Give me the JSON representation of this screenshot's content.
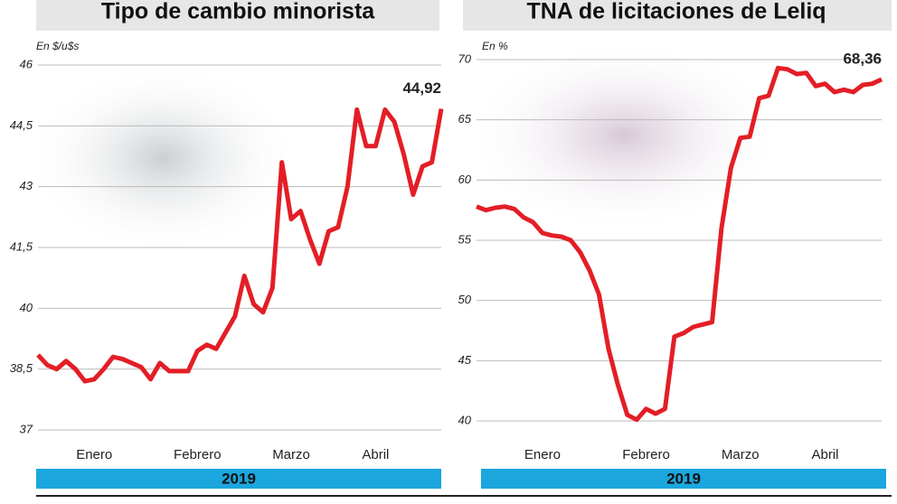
{
  "chart_data": [
    {
      "type": "line",
      "title": "Tipo de cambio minorista",
      "ylabel": "En $/u$s",
      "xlabel": "2019",
      "categories": [
        null,
        null,
        null,
        null,
        null,
        null,
        "Enero",
        null,
        null,
        null,
        null,
        null,
        null,
        null,
        null,
        null,
        null,
        "Febrero",
        null,
        null,
        null,
        null,
        null,
        null,
        null,
        null,
        null,
        "Marzo",
        null,
        null,
        null,
        null,
        null,
        null,
        null,
        null,
        "Abril",
        null,
        null,
        null,
        null,
        null,
        null,
        null
      ],
      "series": [
        {
          "name": null,
          "color": "#e31e26",
          "values": [
            38.85,
            38.6,
            38.5,
            38.7,
            38.5,
            38.2,
            38.25,
            38.5,
            38.8,
            38.75,
            38.65,
            38.55,
            38.25,
            38.65,
            38.45,
            38.45,
            38.45,
            38.95,
            39.1,
            39.0,
            39.4,
            39.8,
            40.8,
            40.1,
            39.9,
            40.5,
            43.6,
            42.2,
            42.4,
            41.7,
            41.1,
            41.9,
            42.0,
            43.0,
            44.9,
            44.0,
            44.0,
            44.9,
            44.6,
            43.8,
            42.8,
            43.5,
            43.6,
            44.92
          ],
          "value_labels": [
            null,
            null,
            null,
            null,
            null,
            null,
            null,
            null,
            null,
            null,
            null,
            null,
            null,
            null,
            null,
            null,
            null,
            null,
            null,
            null,
            null,
            null,
            null,
            null,
            null,
            null,
            null,
            null,
            null,
            null,
            null,
            null,
            null,
            null,
            null,
            null,
            null,
            null,
            null,
            null,
            null,
            null,
            null,
            "44,92"
          ]
        }
      ],
      "ylim": [
        37,
        46
      ],
      "yticks": [
        37,
        {
          "value": 38.5,
          "label": "38,5"
        },
        40,
        {
          "value": 41.5,
          "label": "41,5"
        },
        43,
        {
          "value": 44.5,
          "label": "44,5"
        },
        46
      ],
      "grid": true,
      "band_color": "#1ba7de"
    },
    {
      "type": "line",
      "title": "TNA de licitaciones de Leliq",
      "ylabel": "En %",
      "xlabel": "2019",
      "categories": [
        null,
        null,
        null,
        null,
        null,
        null,
        null,
        "Enero",
        null,
        null,
        null,
        null,
        null,
        null,
        null,
        null,
        null,
        null,
        "Febrero",
        null,
        null,
        null,
        null,
        null,
        null,
        null,
        null,
        null,
        "Marzo",
        null,
        null,
        null,
        null,
        null,
        null,
        null,
        null,
        "Abril",
        null,
        null,
        null,
        null,
        null,
        null
      ],
      "series": [
        {
          "name": null,
          "color": "#e31e26",
          "values": [
            57.8,
            57.5,
            57.7,
            57.8,
            57.6,
            56.9,
            56.5,
            55.6,
            55.4,
            55.3,
            55.0,
            54.0,
            52.5,
            50.5,
            46.0,
            43.0,
            40.5,
            40.1,
            41.0,
            40.6,
            41.0,
            47.0,
            47.3,
            47.8,
            48.0,
            48.2,
            56.0,
            61.0,
            63.5,
            63.6,
            66.8,
            67.0,
            69.3,
            69.2,
            68.8,
            68.9,
            67.8,
            68.0,
            67.3,
            67.5,
            67.3,
            67.9,
            68.0,
            68.36
          ],
          "value_labels": [
            null,
            null,
            null,
            null,
            null,
            null,
            null,
            null,
            null,
            null,
            null,
            null,
            null,
            null,
            null,
            null,
            null,
            null,
            null,
            null,
            null,
            null,
            null,
            null,
            null,
            null,
            null,
            null,
            null,
            null,
            null,
            null,
            null,
            null,
            null,
            null,
            null,
            null,
            null,
            null,
            null,
            null,
            null,
            "68,36"
          ]
        }
      ],
      "ylim": [
        40,
        70
      ],
      "yticks": [
        40,
        45,
        50,
        55,
        60,
        65,
        70
      ],
      "grid": true,
      "band_color": "#1ba7de"
    }
  ]
}
